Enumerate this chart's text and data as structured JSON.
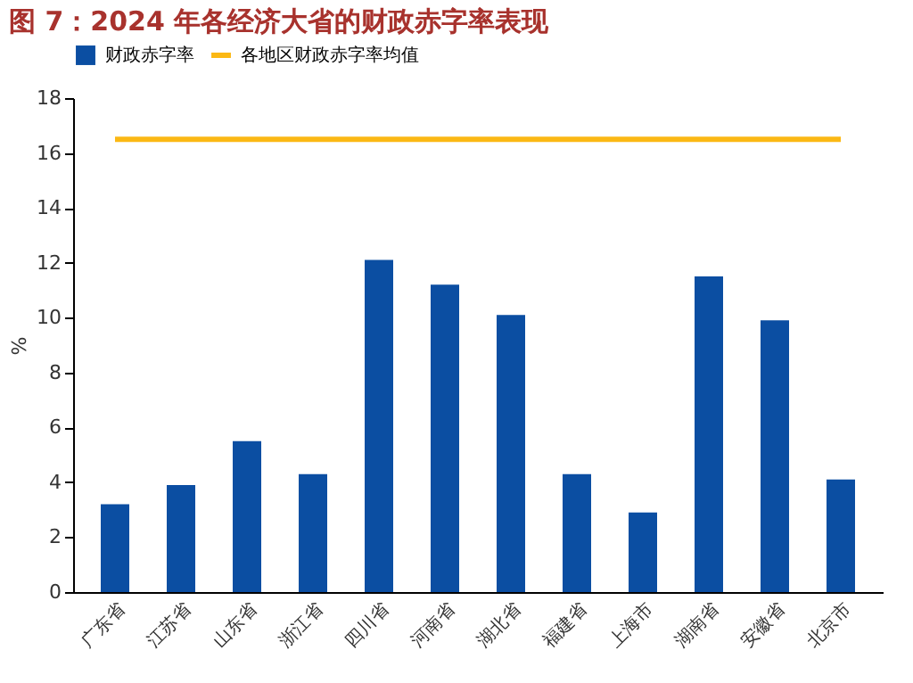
{
  "chart_data": {
    "type": "bar",
    "title": "图 7：2024 年各经济大省的财政赤字率表现",
    "ylabel": "%",
    "categories": [
      "广东省",
      "江苏省",
      "山东省",
      "浙江省",
      "四川省",
      "河南省",
      "湖北省",
      "福建省",
      "上海市",
      "湖南省",
      "安徽省",
      "北京市"
    ],
    "series": [
      {
        "name": "财政赤字率",
        "color": "#0b4ea2",
        "values": [
          3.2,
          3.9,
          5.5,
          4.3,
          12.1,
          11.2,
          10.1,
          4.3,
          2.9,
          11.5,
          9.9,
          4.1
        ]
      },
      {
        "name": "各地区财政赤字率均值",
        "type": "line",
        "color": "#fbb814",
        "values": [
          16.5,
          16.5,
          16.5,
          16.5,
          16.5,
          16.5,
          16.5,
          16.5,
          16.5,
          16.5,
          16.5,
          16.5
        ]
      }
    ],
    "ylim": [
      0,
      18
    ],
    "yticks": [
      0,
      2,
      4,
      6,
      8,
      10,
      12,
      14,
      16,
      18
    ],
    "grid": false,
    "legend": "top"
  }
}
